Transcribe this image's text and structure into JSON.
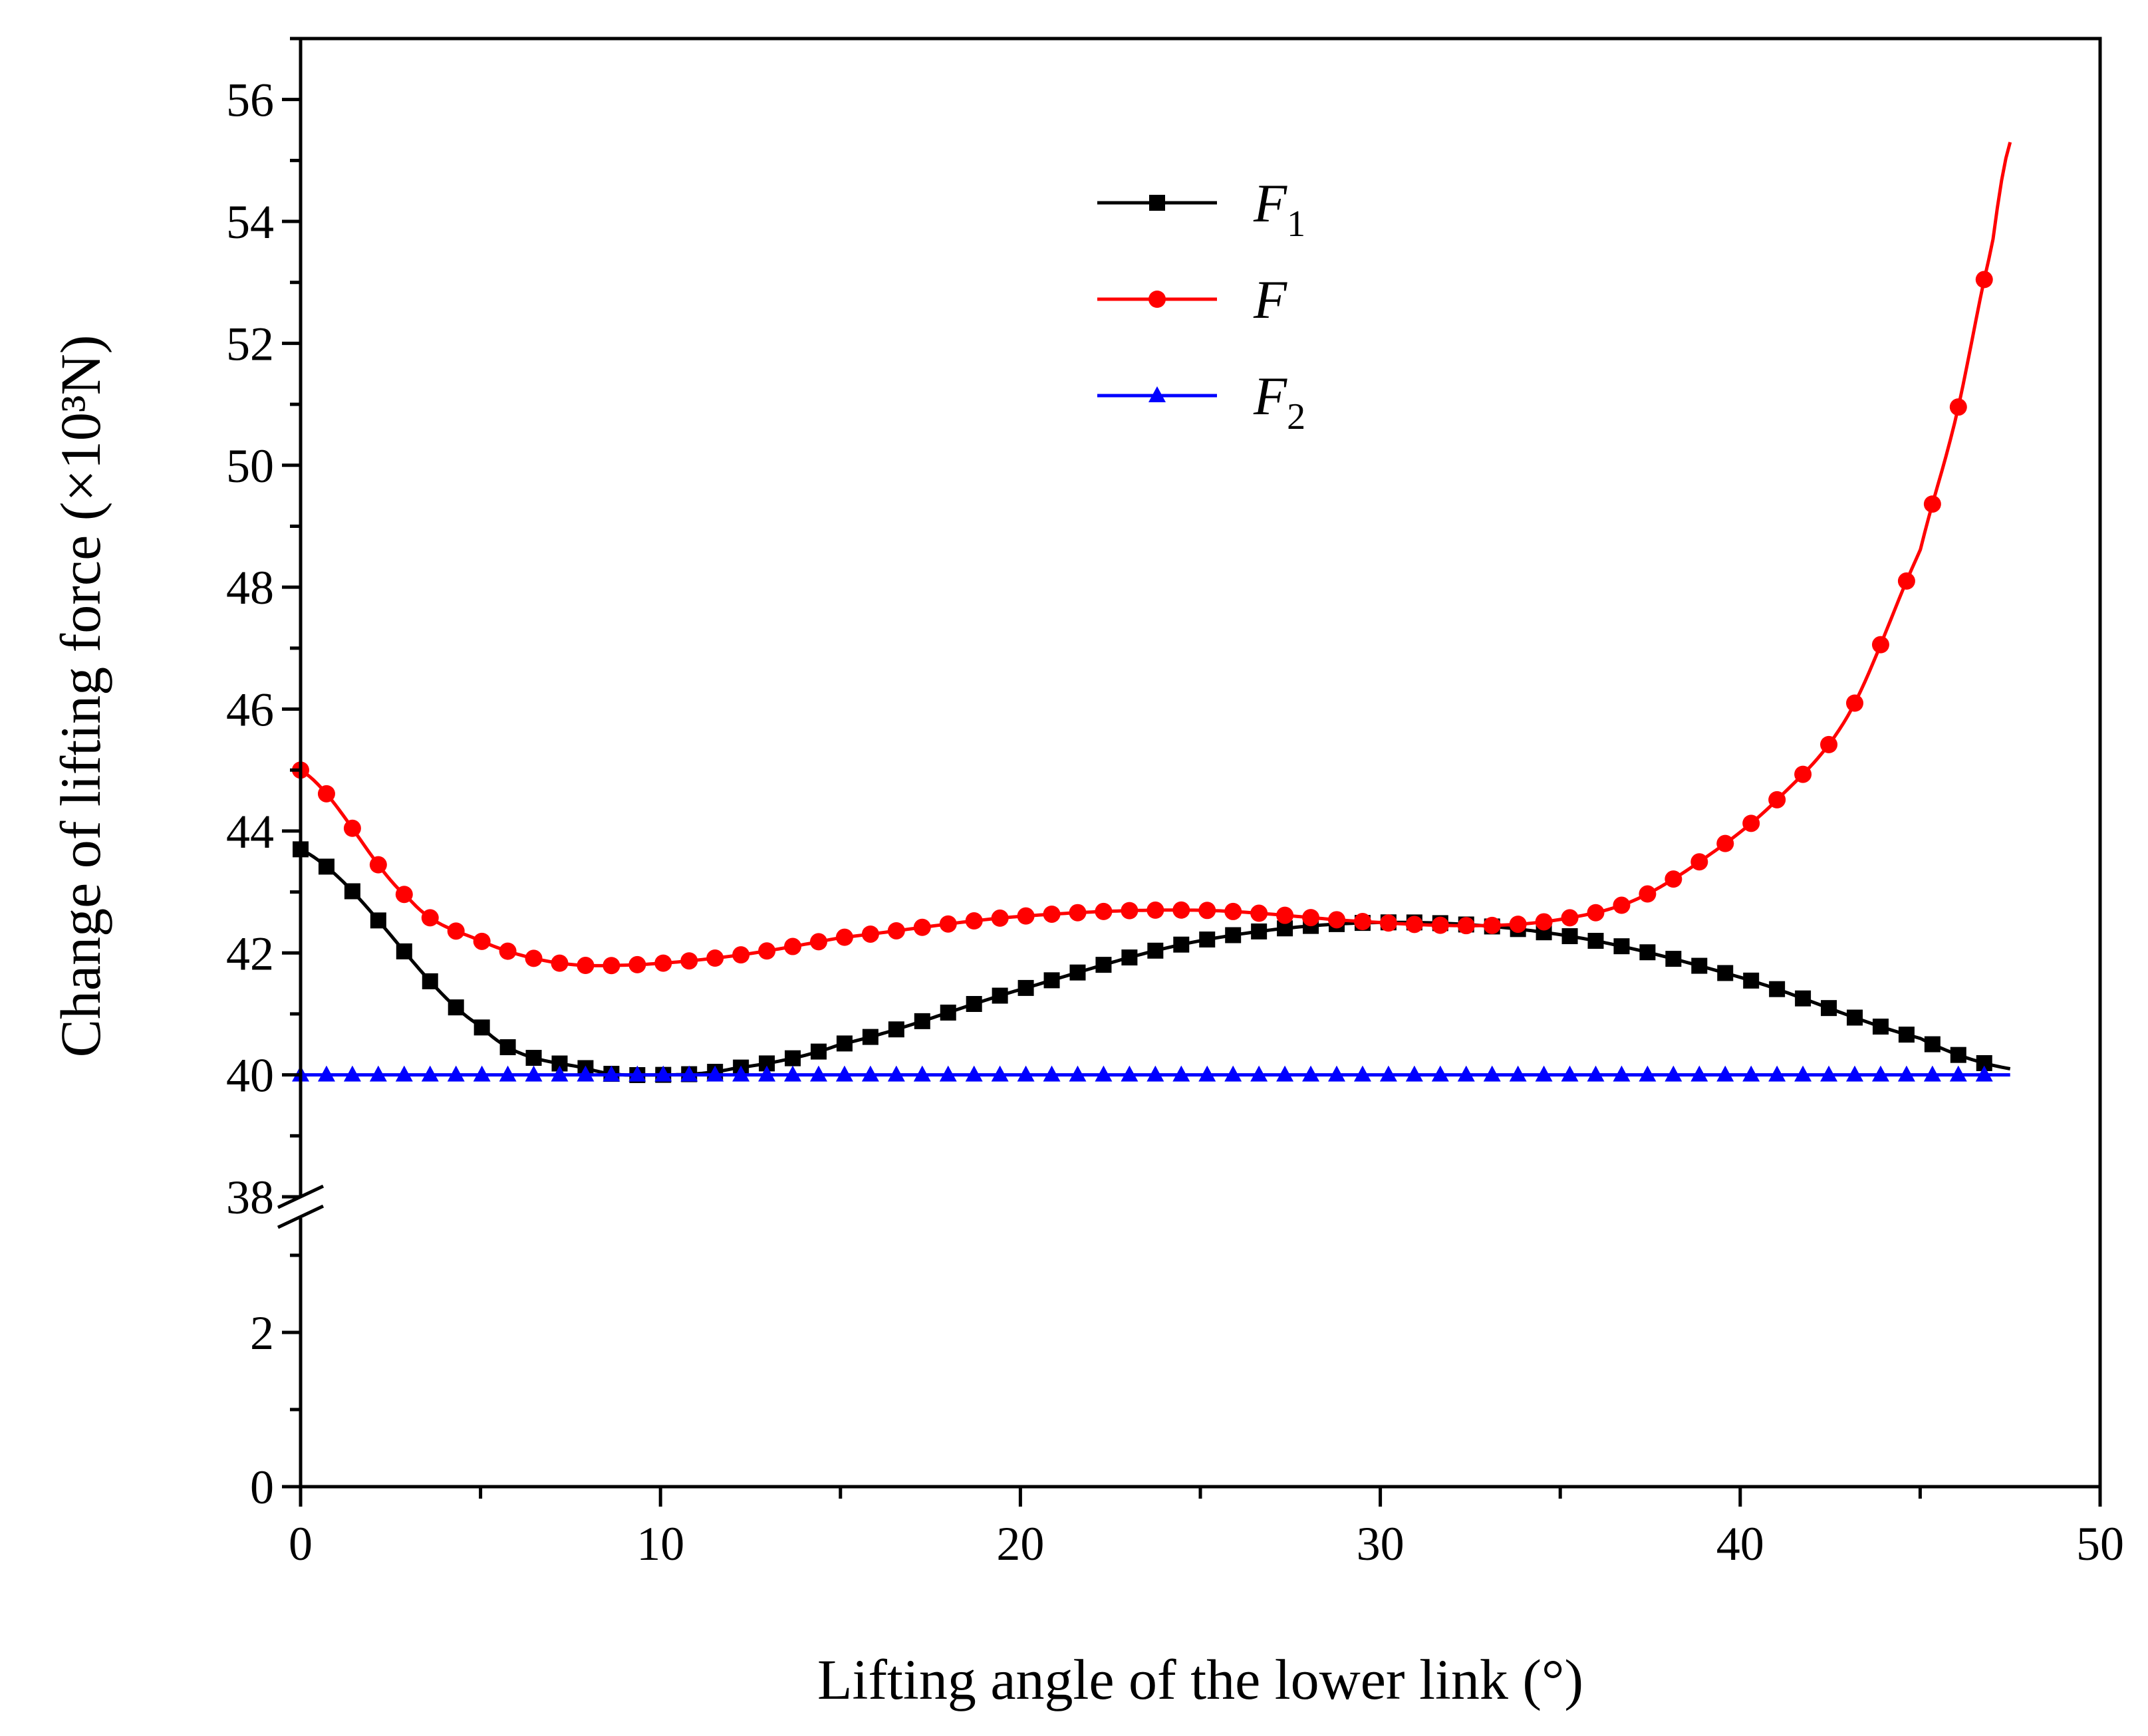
{
  "chart_data": {
    "type": "line",
    "xlabel": "Lifting angle of the lower link (°)",
    "ylabel": "Change of lifting force (×10³N)",
    "xlim": [
      0,
      50
    ],
    "x_ticks": [
      0,
      10,
      20,
      30,
      40,
      50
    ],
    "y_axis_break": {
      "lower_segment": {
        "range": [
          0,
          3.5
        ],
        "ticks": [
          0,
          2
        ]
      },
      "upper_segment": {
        "range": [
          38,
          57
        ],
        "ticks": [
          38,
          40,
          42,
          44,
          46,
          48,
          50,
          52,
          54,
          56
        ]
      }
    },
    "y_tick_labels": [
      "0",
      "2",
      "38",
      "40",
      "42",
      "44",
      "46",
      "48",
      "50",
      "52",
      "54",
      "56"
    ],
    "x_tick_labels": [
      "0",
      "10",
      "20",
      "30",
      "40",
      "50"
    ],
    "legend": [
      {
        "key": "F1",
        "label": "F",
        "subscript": "1",
        "color": "#000000",
        "marker": "square"
      },
      {
        "key": "F",
        "label": "F",
        "subscript": "",
        "color": "#ff0000",
        "marker": "circle"
      },
      {
        "key": "F2",
        "label": "F",
        "subscript": "2",
        "color": "#0000ff",
        "marker": "triangle"
      }
    ],
    "legend_position": "upper-center",
    "series": [
      {
        "name": "F1",
        "color": "#000000",
        "marker": "square",
        "x": [
          0,
          5,
          8,
          10,
          12,
          15,
          20,
          25,
          30,
          35,
          40,
          45,
          47.5
        ],
        "y": [
          43.7,
          40.8,
          40.1,
          40.0,
          40.1,
          40.5,
          41.4,
          42.2,
          42.5,
          42.3,
          41.6,
          40.6,
          40.1
        ]
      },
      {
        "name": "F",
        "color": "#ff0000",
        "marker": "circle",
        "x": [
          0,
          3,
          5,
          7,
          9,
          12,
          15,
          20,
          25,
          30,
          33,
          35,
          37,
          39,
          41,
          43,
          45,
          46,
          47,
          47.5
        ],
        "y": [
          45.0,
          42.9,
          42.2,
          41.85,
          41.8,
          41.95,
          42.25,
          42.6,
          42.7,
          42.5,
          42.45,
          42.55,
          42.85,
          43.55,
          44.5,
          45.9,
          48.6,
          50.8,
          53.6,
          55.3
        ]
      },
      {
        "name": "F2",
        "color": "#0000ff",
        "marker": "triangle",
        "x": [
          0,
          47.5
        ],
        "y": [
          40.0,
          40.0
        ]
      }
    ]
  }
}
